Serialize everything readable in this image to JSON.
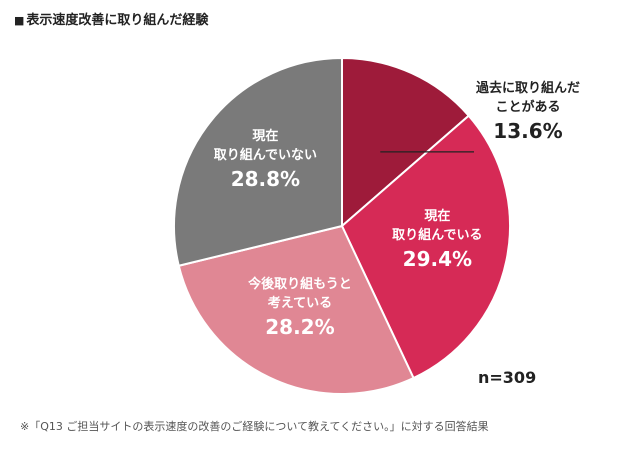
{
  "title": "表示速度改善に取り組んだ経験",
  "title_marker": "■",
  "sample_size": "n=309",
  "footnote": "※「Q13 ご担当サイトの表示速度の改善のご経験について教えてください。」に対する回答結果",
  "chart_data": {
    "type": "pie",
    "title": "表示速度改善に取り組んだ経験",
    "start_angle_deg": 0,
    "direction": "clockwise",
    "slices": [
      {
        "label_lines": [
          "過去に取り組んだ",
          "ことがある"
        ],
        "label": "過去に取り組んだことがある",
        "value": 13.6,
        "value_text": "13.6%",
        "color": "#9e1b3a",
        "text_color": "#222222",
        "label_placement": "outside"
      },
      {
        "label_lines": [
          "現在",
          "取り組んでいる"
        ],
        "label": "現在取り組んでいる",
        "value": 29.4,
        "value_text": "29.4%",
        "color": "#d62a56",
        "text_color": "#ffffff",
        "label_placement": "inside"
      },
      {
        "label_lines": [
          "今後取り組もうと",
          "考えている"
        ],
        "label": "今後取り組もうと考えている",
        "value": 28.2,
        "value_text": "28.2%",
        "color": "#e08794",
        "text_color": "#ffffff",
        "label_placement": "inside"
      },
      {
        "label_lines": [
          "現在",
          "取り組んでいない"
        ],
        "label": "現在取り組んでいない",
        "value": 28.8,
        "value_text": "28.8%",
        "color": "#7a7a7a",
        "text_color": "#ffffff",
        "label_placement": "inside"
      }
    ]
  }
}
